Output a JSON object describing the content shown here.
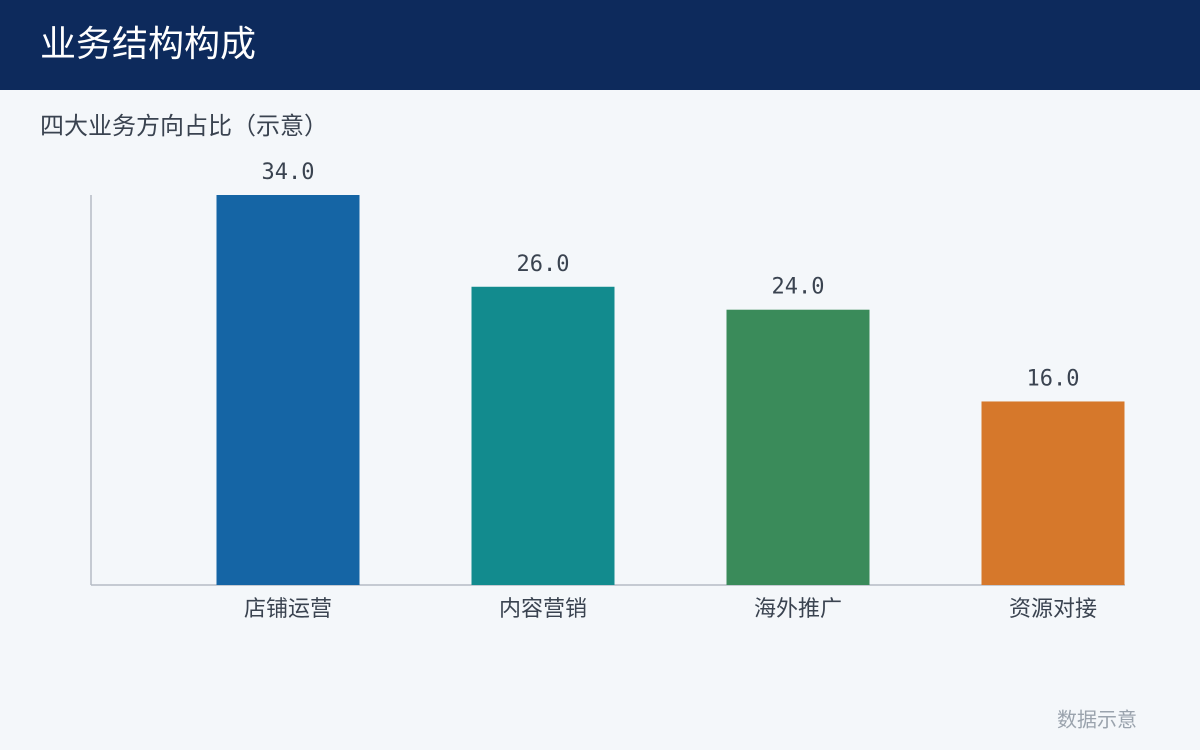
{
  "header": {
    "title": "业务结构构成"
  },
  "chart_data": {
    "type": "bar",
    "title": "四大业务方向占比（示意）",
    "categories": [
      "店铺运营",
      "内容营销",
      "海外推广",
      "资源对接"
    ],
    "values": [
      34,
      26,
      24,
      16
    ],
    "value_labels": [
      "34.0",
      "26.0",
      "24.0",
      "16.0"
    ],
    "colors": [
      "#1565a5",
      "#128b8e",
      "#3a8b5a",
      "#d6782b"
    ],
    "ylim": [
      0,
      34
    ]
  },
  "footer": {
    "note": "数据示意"
  }
}
